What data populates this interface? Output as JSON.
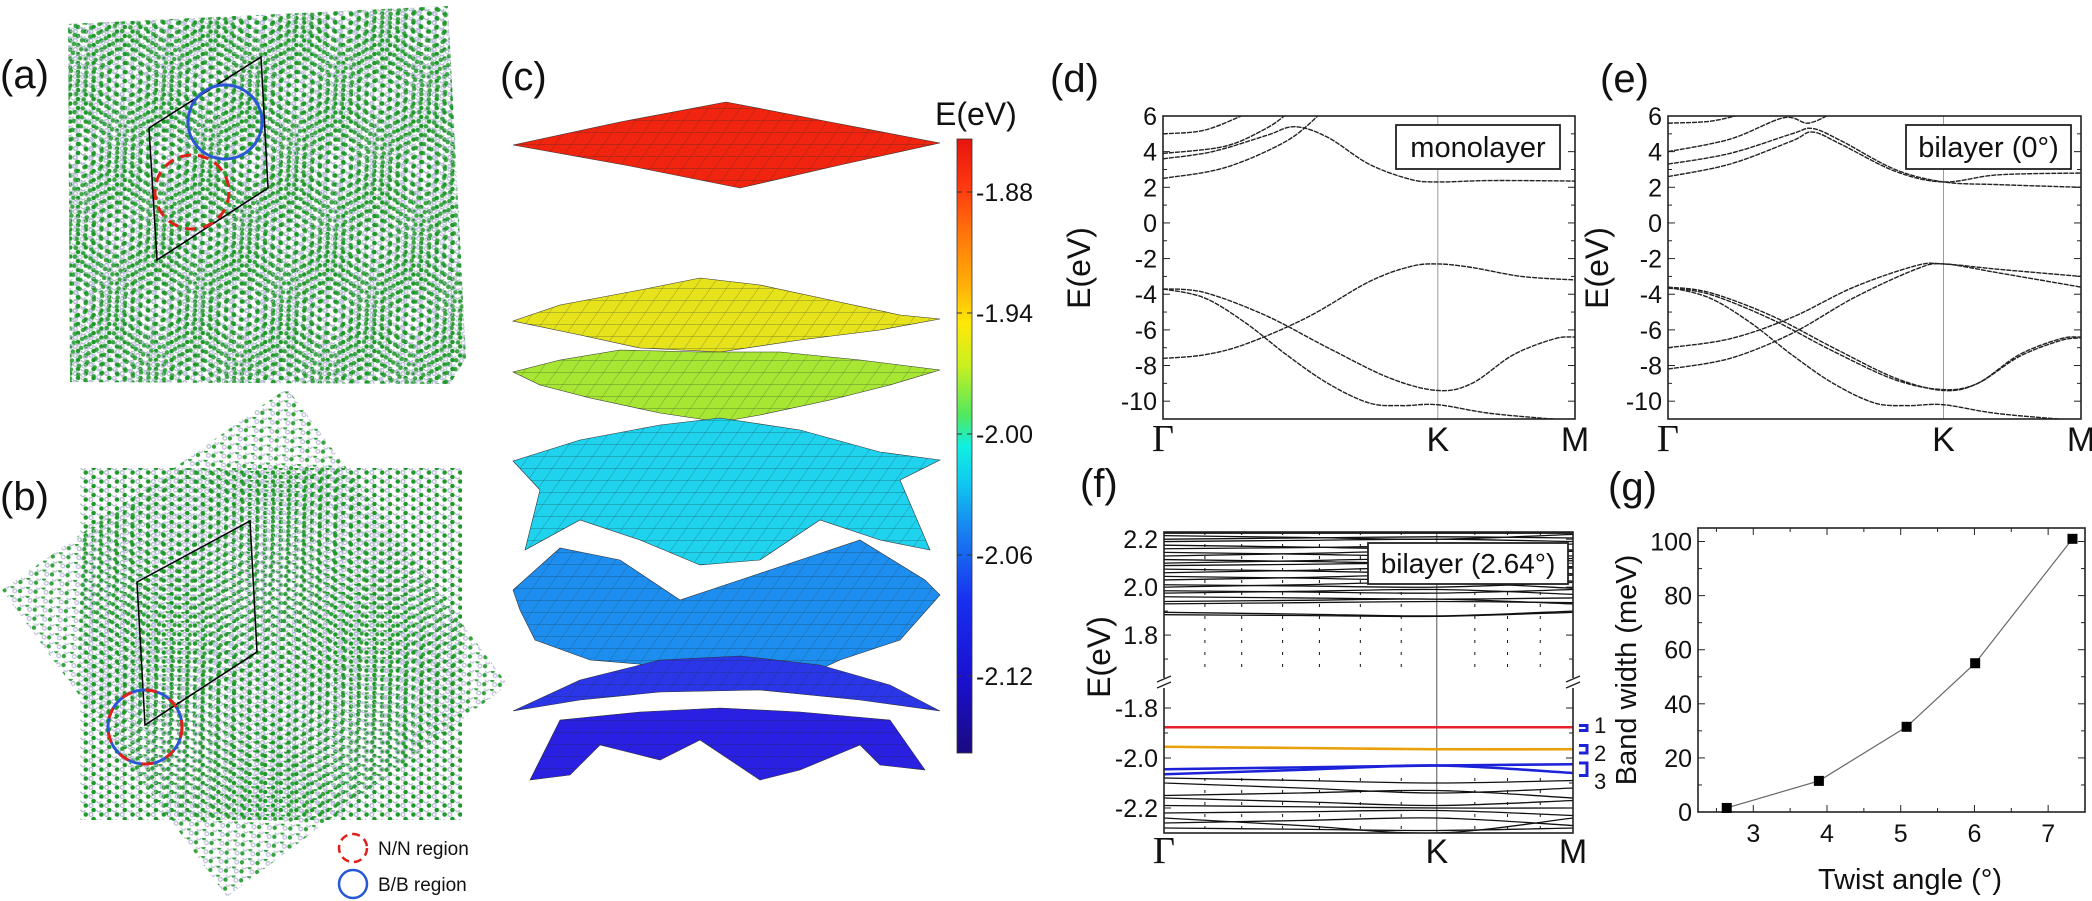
{
  "panels": {
    "a": {
      "label": "(a)"
    },
    "b": {
      "label": "(b)",
      "legend": [
        {
          "label": "N/N region",
          "color": "#e0201a",
          "style": "dashed"
        },
        {
          "label": "B/B region",
          "color": "#2a56d8",
          "style": "solid"
        }
      ]
    },
    "c": {
      "label": "(c)",
      "colorbar": {
        "title": "E(eV)",
        "ticks": [
          "-1.88",
          "-1.94",
          "-2.00",
          "-2.06",
          "-2.12"
        ],
        "tick_values": [
          -1.88,
          -1.94,
          -2.0,
          -2.06,
          -2.12
        ],
        "range": [
          -2.16,
          -1.85
        ],
        "colormap": "jet"
      }
    },
    "d": {
      "label": "(d)"
    },
    "e": {
      "label": "(e)"
    },
    "f": {
      "label": "(f)",
      "band_labels": [
        "1",
        "2",
        "3"
      ]
    },
    "g": {
      "label": "(g)"
    }
  },
  "atom_colors": {
    "species_1": "#1f9a2a",
    "species_2": "#b4b6d6"
  },
  "chart_data": [
    {
      "id": "d",
      "type": "line",
      "inset": "monolayer",
      "ylabel": "E(eV)",
      "ylim": [
        -11,
        6
      ],
      "yticks": [
        6,
        4,
        2,
        0,
        -2,
        -4,
        -6,
        -8,
        -10
      ],
      "xticks": [
        {
          "label": "Γ",
          "k": 0
        },
        {
          "label": "K",
          "k": 0.667
        },
        {
          "label": "M",
          "k": 1
        }
      ],
      "bands": [
        [
          [
            0,
            2.5
          ],
          [
            0.15,
            3.1
          ],
          [
            0.3,
            4.6
          ],
          [
            0.385,
            6.2
          ]
        ],
        [
          [
            0,
            3.6
          ],
          [
            0.12,
            4.0
          ],
          [
            0.25,
            4.9
          ],
          [
            0.32,
            5.4
          ],
          [
            0.4,
            4.8
          ],
          [
            0.5,
            3.3
          ],
          [
            0.6,
            2.45
          ],
          [
            0.667,
            2.3
          ],
          [
            0.8,
            2.38
          ],
          [
            1,
            2.35
          ]
        ],
        [
          [
            0,
            3.9
          ],
          [
            0.15,
            4.3
          ],
          [
            0.25,
            5.3
          ],
          [
            0.3,
            6.1
          ]
        ],
        [
          [
            0,
            5.0
          ],
          [
            0.1,
            5.2
          ],
          [
            0.2,
            6.1
          ]
        ],
        [
          [
            0,
            -3.7
          ],
          [
            0.1,
            -3.9
          ],
          [
            0.25,
            -5.2
          ],
          [
            0.4,
            -7.0
          ],
          [
            0.55,
            -8.7
          ],
          [
            0.667,
            -9.4
          ],
          [
            0.75,
            -9.0
          ],
          [
            0.85,
            -7.4
          ],
          [
            0.95,
            -6.5
          ],
          [
            1,
            -6.4
          ]
        ],
        [
          [
            0,
            -3.7
          ],
          [
            0.1,
            -4.2
          ],
          [
            0.2,
            -5.6
          ],
          [
            0.3,
            -7.4
          ],
          [
            0.4,
            -9.0
          ],
          [
            0.5,
            -10.1
          ],
          [
            0.58,
            -10.25
          ],
          [
            0.667,
            -10.2
          ],
          [
            0.8,
            -10.7
          ],
          [
            1,
            -11.1
          ]
        ],
        [
          [
            0,
            -7.6
          ],
          [
            0.1,
            -7.4
          ],
          [
            0.2,
            -6.8
          ],
          [
            0.35,
            -5.3
          ],
          [
            0.5,
            -3.3
          ],
          [
            0.6,
            -2.45
          ],
          [
            0.667,
            -2.3
          ],
          [
            0.75,
            -2.5
          ],
          [
            0.87,
            -3.0
          ],
          [
            1,
            -3.2
          ]
        ]
      ]
    },
    {
      "id": "e",
      "type": "line",
      "inset": "bilayer (0°)",
      "ylabel": "E(eV)",
      "ylim": [
        -11,
        6
      ],
      "yticks": [
        6,
        4,
        2,
        0,
        -2,
        -4,
        -6,
        -8,
        -10
      ],
      "xticks": [
        {
          "label": "Γ",
          "k": 0
        },
        {
          "label": "K",
          "k": 0.667
        },
        {
          "label": "M",
          "k": 1
        }
      ],
      "bands": [
        [
          [
            0,
            2.6
          ],
          [
            0.15,
            3.3
          ],
          [
            0.3,
            4.6
          ],
          [
            0.35,
            5.1
          ],
          [
            0.42,
            4.4
          ],
          [
            0.55,
            2.9
          ],
          [
            0.667,
            2.3
          ],
          [
            0.8,
            2.7
          ],
          [
            1,
            2.8
          ]
        ],
        [
          [
            0,
            3.3
          ],
          [
            0.15,
            3.9
          ],
          [
            0.3,
            5.0
          ],
          [
            0.35,
            5.3
          ],
          [
            0.42,
            4.6
          ],
          [
            0.55,
            3.0
          ],
          [
            0.667,
            2.3
          ],
          [
            0.8,
            2.15
          ],
          [
            1,
            2.0
          ]
        ],
        [
          [
            0,
            4.0
          ],
          [
            0.15,
            4.7
          ],
          [
            0.28,
            5.9
          ],
          [
            0.34,
            5.6
          ],
          [
            0.4,
            6.2
          ]
        ],
        [
          [
            0,
            5.6
          ],
          [
            0.1,
            5.7
          ],
          [
            0.18,
            6.1
          ]
        ],
        [
          [
            0,
            -3.6
          ],
          [
            0.1,
            -3.9
          ],
          [
            0.25,
            -5.2
          ],
          [
            0.4,
            -7.0
          ],
          [
            0.55,
            -8.7
          ],
          [
            0.667,
            -9.4
          ],
          [
            0.75,
            -9.0
          ],
          [
            0.85,
            -7.4
          ],
          [
            0.95,
            -6.5
          ],
          [
            1,
            -6.4
          ]
        ],
        [
          [
            0,
            -3.65
          ],
          [
            0.1,
            -4.0
          ],
          [
            0.25,
            -5.4
          ],
          [
            0.4,
            -7.2
          ],
          [
            0.55,
            -8.8
          ],
          [
            0.667,
            -9.35
          ],
          [
            0.75,
            -9.0
          ],
          [
            0.85,
            -7.5
          ],
          [
            0.95,
            -6.6
          ],
          [
            1,
            -6.45
          ]
        ],
        [
          [
            0,
            -3.6
          ],
          [
            0.1,
            -4.2
          ],
          [
            0.2,
            -5.6
          ],
          [
            0.3,
            -7.4
          ],
          [
            0.4,
            -9.0
          ],
          [
            0.5,
            -10.1
          ],
          [
            0.58,
            -10.25
          ],
          [
            0.667,
            -10.2
          ],
          [
            0.8,
            -10.7
          ],
          [
            1,
            -11.1
          ]
        ],
        [
          [
            0,
            -7.0
          ],
          [
            0.15,
            -6.5
          ],
          [
            0.3,
            -5.3
          ],
          [
            0.45,
            -3.6
          ],
          [
            0.6,
            -2.4
          ],
          [
            0.667,
            -2.3
          ],
          [
            0.8,
            -2.6
          ],
          [
            1,
            -3.0
          ]
        ],
        [
          [
            0,
            -8.2
          ],
          [
            0.15,
            -7.6
          ],
          [
            0.3,
            -6.2
          ],
          [
            0.45,
            -4.2
          ],
          [
            0.6,
            -2.6
          ],
          [
            0.667,
            -2.3
          ],
          [
            0.8,
            -2.8
          ],
          [
            1,
            -3.6
          ]
        ]
      ]
    },
    {
      "id": "f",
      "type": "line",
      "inset": "bilayer (2.64°)",
      "ylabel": "E(eV)",
      "broken_axis": true,
      "ylim_upper": [
        1.6,
        2.23
      ],
      "ylim_lower": [
        -2.3,
        -1.7
      ],
      "yticks_upper": [
        "1.8",
        "2.0",
        "2.2"
      ],
      "yticks_upper_values": [
        1.8,
        2.0,
        2.2
      ],
      "yticks_lower": [
        "-2.2",
        "-2.0",
        "-1.8"
      ],
      "yticks_lower_values": [
        -2.2,
        -2.0,
        -1.8
      ],
      "xticks": [
        {
          "label": "Γ",
          "k": 0
        },
        {
          "label": "K",
          "k": 0.667
        },
        {
          "label": "M",
          "k": 1
        }
      ],
      "upper_bands_GKM": [
        [
          1.885,
          1.878,
          1.895
        ],
        [
          1.895,
          1.88,
          1.9
        ],
        [
          1.93,
          1.94,
          1.935
        ],
        [
          1.94,
          1.95,
          1.93
        ],
        [
          1.96,
          1.95,
          1.955
        ],
        [
          1.975,
          1.99,
          1.97
        ],
        [
          1.985,
          1.975,
          1.99
        ],
        [
          2.0,
          2.02,
          1.995
        ],
        [
          2.01,
          2.0,
          2.02
        ],
        [
          2.03,
          2.05,
          2.025
        ],
        [
          2.045,
          2.03,
          2.05
        ],
        [
          2.06,
          2.08,
          2.055
        ],
        [
          2.075,
          2.06,
          2.08
        ],
        [
          2.09,
          2.1,
          2.085
        ],
        [
          2.1,
          2.12,
          2.11
        ],
        [
          2.115,
          2.1,
          2.12
        ],
        [
          2.13,
          2.15,
          2.13
        ],
        [
          2.145,
          2.13,
          2.15
        ],
        [
          2.16,
          2.17,
          2.155
        ],
        [
          2.175,
          2.16,
          2.18
        ],
        [
          2.19,
          2.2,
          2.19
        ],
        [
          2.2,
          2.21,
          2.205
        ],
        [
          2.215,
          2.2,
          2.22
        ],
        [
          2.225,
          2.225,
          2.225
        ]
      ],
      "lower_bands_GKM": [
        [
          -2.08,
          -2.1,
          -2.09
        ],
        [
          -2.1,
          -2.14,
          -2.12
        ],
        [
          -2.15,
          -2.13,
          -2.16
        ],
        [
          -2.16,
          -2.19,
          -2.17
        ],
        [
          -2.19,
          -2.2,
          -2.2
        ],
        [
          -2.22,
          -2.21,
          -2.23
        ],
        [
          -2.24,
          -2.3,
          -2.24
        ],
        [
          -2.26,
          -2.24,
          -2.27
        ],
        [
          -2.28,
          -2.29,
          -2.28
        ]
      ],
      "highlighted_bands": [
        {
          "band": "1",
          "color": "#e8222a",
          "GKM": [
            [
              -1.877,
              -1.877,
              -1.877
            ]
          ]
        },
        {
          "band": "2",
          "color": "#e8a10a",
          "GKM": [
            [
              -1.955,
              -1.965,
              -1.965
            ]
          ]
        },
        {
          "band": "3",
          "color": "#1c22d8",
          "GKM": [
            [
              -2.045,
              -2.03,
              -2.025
            ],
            [
              -2.065,
              -2.03,
              -2.06
            ]
          ]
        }
      ],
      "bracket_ranges": [
        [
          -1.87,
          -1.89
        ],
        [
          -1.95,
          -1.98
        ],
        [
          -2.02,
          -2.07
        ]
      ]
    },
    {
      "id": "g",
      "type": "scatter",
      "xlabel": "Twist angle (°)",
      "ylabel": "Band width (meV)",
      "xlim": [
        2.25,
        7.5
      ],
      "ylim": [
        0,
        105
      ],
      "xticks": [
        3,
        4,
        5,
        6,
        7
      ],
      "yticks": [
        0,
        20,
        40,
        60,
        80,
        100
      ],
      "x": [
        2.64,
        3.89,
        5.08,
        6.01,
        7.33
      ],
      "y": [
        1.5,
        11.5,
        31.5,
        55,
        101
      ],
      "line": true,
      "marker": "square"
    }
  ]
}
